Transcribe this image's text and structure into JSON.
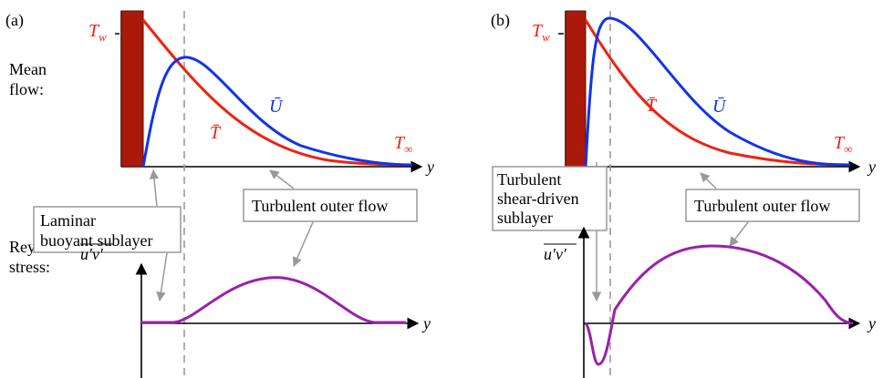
{
  "panels": [
    {
      "id": "a",
      "panel_label": "(a)",
      "row_label_mean": [
        "Mean",
        "flow:"
      ],
      "row_label_stress": [
        "Reynolds",
        "stress:"
      ],
      "wall_temp_label": "T",
      "wall_temp_sub": "w",
      "far_temp_label": "T",
      "far_temp_sub": "∞",
      "T_label": "T̄",
      "U_label": "Ū",
      "axis_label": "y",
      "stress_axis_label": "u′v′",
      "box_inner": [
        "Laminar",
        "buoyant sublayer"
      ],
      "box_outer": [
        "Turbulent outer flow"
      ]
    },
    {
      "id": "b",
      "panel_label": "(b)",
      "wall_temp_label": "T",
      "wall_temp_sub": "w",
      "far_temp_label": "T",
      "far_temp_sub": "∞",
      "T_label": "T̄",
      "U_label": "Ū",
      "axis_label": "y",
      "stress_axis_label": "u′v′",
      "box_inner": [
        "Turbulent",
        "shear-driven",
        "sublayer"
      ],
      "box_outer": [
        "Turbulent outer flow"
      ]
    }
  ],
  "colors": {
    "T_curve": "#ee2211",
    "U_curve": "#1133ee",
    "stress_curve": "#9922aa",
    "wall": "#aa1a0a",
    "dashed": "#999999",
    "arrows": "#999999"
  }
}
